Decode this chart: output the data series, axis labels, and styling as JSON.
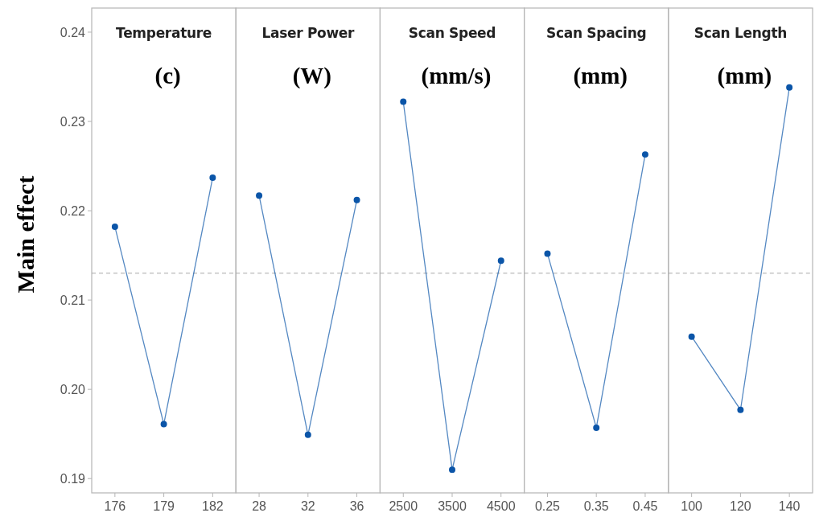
{
  "chart_data": [
    {
      "type": "line",
      "title": "Temperature",
      "subtitle": "(c)",
      "ylabel": "Main effect",
      "categories": [
        "176",
        "179",
        "182"
      ],
      "series": [
        {
          "color": "#0b55a8",
          "values": [
            0.2182,
            0.1961,
            0.2237
          ]
        }
      ],
      "ylim": [
        0.1884,
        0.2427
      ],
      "yticks": [
        0.19,
        {
          "value": 0.2,
          "label": "0.20"
        },
        0.21,
        0.22,
        0.23,
        0.24
      ],
      "marker": "circle",
      "ref_lines": [
        {
          "axis": "y",
          "value": 0.213,
          "color": "#a8a8a8",
          "line_style": "dashed"
        }
      ]
    },
    {
      "type": "line",
      "title": "Laser Power",
      "subtitle": "(W)",
      "categories": [
        "28",
        "32",
        "36"
      ],
      "series": [
        {
          "color": "#0b55a8",
          "values": [
            0.2217,
            0.1949,
            0.2212
          ]
        }
      ],
      "ylim": [
        0.1884,
        0.2427
      ],
      "tick_labels": "x",
      "marker": "circle",
      "ref_lines": [
        {
          "axis": "y",
          "value": 0.213,
          "color": "#a8a8a8",
          "line_style": "dashed"
        }
      ]
    },
    {
      "type": "line",
      "title": "Scan Speed",
      "subtitle": "(mm/s)",
      "categories": [
        "2500",
        "3500",
        "4500"
      ],
      "series": [
        {
          "color": "#0b55a8",
          "values": [
            0.2322,
            0.191,
            0.2144
          ]
        }
      ],
      "ylim": [
        0.1884,
        0.2427
      ],
      "tick_labels": "x",
      "marker": "circle",
      "ref_lines": [
        {
          "axis": "y",
          "value": 0.213,
          "color": "#a8a8a8",
          "line_style": "dashed"
        }
      ]
    },
    {
      "type": "line",
      "title": "Scan Spacing",
      "subtitle": "(mm)",
      "categories": [
        "0.25",
        "0.35",
        "0.45"
      ],
      "series": [
        {
          "color": "#0b55a8",
          "values": [
            0.2152,
            0.1957,
            0.2263
          ]
        }
      ],
      "ylim": [
        0.1884,
        0.2427
      ],
      "tick_labels": "x",
      "marker": "circle",
      "ref_lines": [
        {
          "axis": "y",
          "value": 0.213,
          "color": "#a8a8a8",
          "line_style": "dashed"
        }
      ]
    },
    {
      "type": "line",
      "title": "Scan Length",
      "subtitle": "(mm)",
      "categories": [
        "100",
        "120",
        "140"
      ],
      "series": [
        {
          "color": "#0b55a8",
          "values": [
            0.2059,
            0.1977,
            0.2338
          ]
        }
      ],
      "ylim": [
        0.1884,
        0.2427
      ],
      "tick_labels": "x",
      "marker": "circle",
      "ref_lines": [
        {
          "axis": "y",
          "value": 0.213,
          "color": "#a8a8a8",
          "line_style": "dashed"
        }
      ]
    }
  ]
}
